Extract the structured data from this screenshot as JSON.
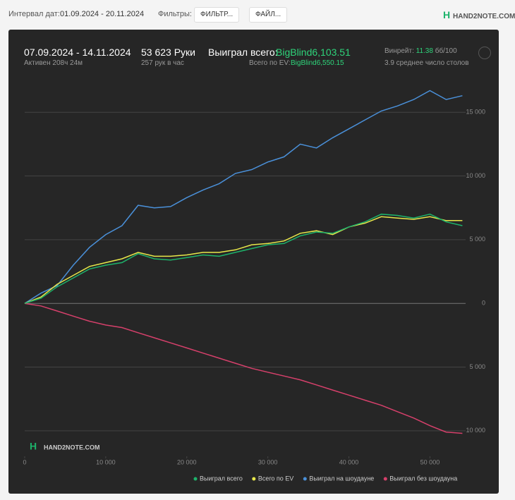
{
  "toolbar": {
    "date_label": "Интервал дат:",
    "date_range": "01.09.2024 - 20.11.2024",
    "filters_label": "Фильтры:",
    "filter_button": "ФИЛЬТР...",
    "file_button": "ФАЙЛ...",
    "logo": "HAND2NOTE.COM"
  },
  "summary": {
    "period": "07.09.2024 - 14.11.2024",
    "active": "Активен 208ч 24м",
    "hands": "53 623 Руки",
    "hands_per_hour": "257 рук в час",
    "won_label": "Выиграл всего:",
    "won_value": "BigBlind6,103.51",
    "ev_label": "Всего по EV:",
    "ev_value": "BigBlind6,550.15",
    "winrate_label": "Винрейт:",
    "winrate_value": "11.38",
    "winrate_unit": "бб/100",
    "tables": "3.9 среднее число столов"
  },
  "chart_data": {
    "type": "line",
    "watermark": "HAND2NOTE.COM",
    "x": [
      0,
      2000,
      4000,
      6000,
      8000,
      10000,
      12000,
      14000,
      16000,
      18000,
      20000,
      22000,
      24000,
      26000,
      28000,
      30000,
      32000,
      34000,
      36000,
      38000,
      40000,
      42000,
      44000,
      46000,
      48000,
      50000,
      52000,
      54000
    ],
    "series": [
      {
        "name": "Выиграл всего",
        "color": "#1db36b",
        "values": [
          0,
          400,
          1300,
          2000,
          2700,
          3000,
          3200,
          3900,
          3500,
          3400,
          3600,
          3800,
          3700,
          4000,
          4300,
          4600,
          4700,
          5300,
          5600,
          5500,
          6000,
          6400,
          7000,
          6900,
          6700,
          7000,
          6400,
          6100
        ]
      },
      {
        "name": "Всего по EV",
        "color": "#e8e84a",
        "values": [
          0,
          500,
          1500,
          2200,
          2900,
          3200,
          3500,
          4000,
          3700,
          3700,
          3800,
          4000,
          4000,
          4200,
          4600,
          4700,
          4900,
          5500,
          5700,
          5400,
          6000,
          6300,
          6800,
          6700,
          6600,
          6800,
          6500,
          6500
        ]
      },
      {
        "name": "Выиграл на шоудауне",
        "color": "#4a90d9",
        "values": [
          0,
          800,
          1400,
          3000,
          4400,
          5400,
          6100,
          7700,
          7500,
          7600,
          8300,
          8900,
          9400,
          10200,
          10500,
          11100,
          11500,
          12500,
          12200,
          13000,
          13700,
          14400,
          15100,
          15500,
          16000,
          16700,
          16000,
          16300
        ]
      },
      {
        "name": "Выиграл без шоудауна",
        "color": "#d6406b",
        "values": [
          0,
          -200,
          -600,
          -1000,
          -1400,
          -1700,
          -1900,
          -2300,
          -2700,
          -3100,
          -3500,
          -3900,
          -4300,
          -4700,
          -5100,
          -5400,
          -5700,
          -6000,
          -6400,
          -6800,
          -7200,
          -7600,
          -8000,
          -8500,
          -9000,
          -9600,
          -10100,
          -10200
        ]
      }
    ],
    "xlim": [
      0,
      54400
    ],
    "ylim": [
      -12000,
      18000
    ],
    "xticks": [
      0,
      {
        "value": 10000,
        "label": "10 000"
      },
      {
        "value": 20000,
        "label": "20 000"
      },
      {
        "value": 30000,
        "label": "30 000"
      },
      {
        "value": 40000,
        "label": "40 000"
      },
      {
        "value": 50000,
        "label": "50 000"
      }
    ],
    "yticks": [
      {
        "value": -10000,
        "label": "10 000"
      },
      {
        "value": -5000,
        "label": "5 000"
      },
      0,
      {
        "value": 5000,
        "label": "5 000"
      },
      {
        "value": 10000,
        "label": "10 000"
      },
      {
        "value": 15000,
        "label": "15 000"
      }
    ],
    "grid": true
  }
}
